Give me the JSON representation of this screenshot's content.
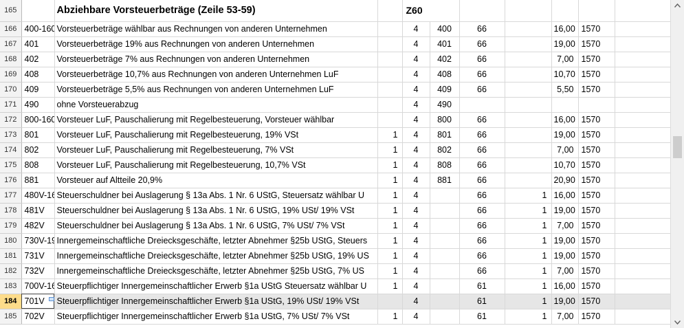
{
  "sheet": {
    "header_row": {
      "row": "165",
      "title": "Abziehbare Vorsteuerbeträge (Zeile 53-59)",
      "code": "Z60"
    },
    "rows": [
      {
        "row": "166",
        "account": "400-160",
        "desc": "Vorsteuerbeträge wählbar aus Rechnungen von anderen Unternehmen",
        "a": "",
        "b": "4",
        "c": "400",
        "d": "66",
        "e": "",
        "rate": "16,00",
        "f": "1570"
      },
      {
        "row": "167",
        "account": "401",
        "desc": "Vorsteuerbeträge 19% aus Rechnungen von anderen Unternehmen",
        "a": "",
        "b": "4",
        "c": "401",
        "d": "66",
        "e": "",
        "rate": "19,00",
        "f": "1570"
      },
      {
        "row": "168",
        "account": "402",
        "desc": "Vorsteuerbeträge 7% aus Rechnungen von anderen Unternehmen",
        "a": "",
        "b": "4",
        "c": "402",
        "d": "66",
        "e": "",
        "rate": "7,00",
        "f": "1570"
      },
      {
        "row": "169",
        "account": "408",
        "desc": "Vorsteuerbeträge 10,7% aus Rechnungen von anderen Unternehmen LuF",
        "a": "",
        "b": "4",
        "c": "408",
        "d": "66",
        "e": "",
        "rate": "10,70",
        "f": "1570"
      },
      {
        "row": "170",
        "account": "409",
        "desc": "Vorsteuerbeträge 5,5% aus Rechnungen von anderen Unternehmen LuF",
        "a": "",
        "b": "4",
        "c": "409",
        "d": "66",
        "e": "",
        "rate": "5,50",
        "f": "1570"
      },
      {
        "row": "171",
        "account": "490",
        "desc": "ohne Vorsteuerabzug",
        "a": "",
        "b": "4",
        "c": "490",
        "d": "",
        "e": "",
        "rate": "",
        "f": ""
      },
      {
        "row": "172",
        "account": "800-160",
        "desc": "Vorsteuer LuF, Pauschalierung mit Regelbesteuerung, Vorsteuer wählbar",
        "a": "",
        "b": "4",
        "c": "800",
        "d": "66",
        "e": "",
        "rate": "16,00",
        "f": "1570"
      },
      {
        "row": "173",
        "account": "801",
        "desc": "Vorsteuer LuF, Pauschalierung mit Regelbesteuerung, 19% VSt",
        "a": "1",
        "b": "4",
        "c": "801",
        "d": "66",
        "e": "",
        "rate": "19,00",
        "f": "1570"
      },
      {
        "row": "174",
        "account": "802",
        "desc": "Vorsteuer LuF, Pauschalierung mit Regelbesteuerung, 7% VSt",
        "a": "1",
        "b": "4",
        "c": "802",
        "d": "66",
        "e": "",
        "rate": "7,00",
        "f": "1570"
      },
      {
        "row": "175",
        "account": "808",
        "desc": "Vorsteuer LuF, Pauschalierung mit Regelbesteuerung, 10,7% VSt",
        "a": "1",
        "b": "4",
        "c": "808",
        "d": "66",
        "e": "",
        "rate": "10,70",
        "f": "1570"
      },
      {
        "row": "176",
        "account": "881",
        "desc": "Vorsteuer auf Altteile 20,9%",
        "a": "1",
        "b": "4",
        "c": "881",
        "d": "66",
        "e": "",
        "rate": "20,90",
        "f": "1570"
      },
      {
        "row": "177",
        "account": "480V-16",
        "desc": "Steuerschuldner bei Auslagerung § 13a Abs. 1 Nr. 6 UStG, Steuersatz wählbar U",
        "a": "1",
        "b": "4",
        "c": "",
        "d": "66",
        "e": "1",
        "rate": "16,00",
        "f": "1570"
      },
      {
        "row": "178",
        "account": "481V",
        "desc": "Steuerschuldner bei Auslagerung § 13a Abs. 1 Nr. 6 UStG, 19% USt/ 19% VSt",
        "a": "1",
        "b": "4",
        "c": "",
        "d": "66",
        "e": "1",
        "rate": "19,00",
        "f": "1570"
      },
      {
        "row": "179",
        "account": "482V",
        "desc": "Steuerschuldner bei Auslagerung § 13a Abs. 1 Nr. 6 UStG, 7% USt/ 7% VSt",
        "a": "1",
        "b": "4",
        "c": "",
        "d": "66",
        "e": "1",
        "rate": "7,00",
        "f": "1570"
      },
      {
        "row": "180",
        "account": "730V-19",
        "desc": "Innergemeinschaftliche Dreiecksgeschäfte, letzter Abnehmer §25b UStG, Steuers",
        "a": "1",
        "b": "4",
        "c": "",
        "d": "66",
        "e": "1",
        "rate": "19,00",
        "f": "1570"
      },
      {
        "row": "181",
        "account": "731V",
        "desc": "Innergemeinschaftliche Dreiecksgeschäfte, letzter Abnehmer §25b UStG, 19% US",
        "a": "1",
        "b": "4",
        "c": "",
        "d": "66",
        "e": "1",
        "rate": "19,00",
        "f": "1570"
      },
      {
        "row": "182",
        "account": "732V",
        "desc": "Innergemeinschaftliche Dreiecksgeschäfte, letzter Abnehmer §25b UStG, 7% US",
        "a": "1",
        "b": "4",
        "c": "",
        "d": "66",
        "e": "1",
        "rate": "7,00",
        "f": "1570"
      },
      {
        "row": "183",
        "account": "700V-16",
        "desc": "Steuerpflichtiger Innergemeinschaftlicher Erwerb §1a UStG Steuersatz wählbar U",
        "a": "1",
        "b": "4",
        "c": "",
        "d": "61",
        "e": "1",
        "rate": "16,00",
        "f": "1570"
      },
      {
        "row": "184",
        "account": "701V",
        "desc": "Steuerpflichtiger Innergemeinschaftlicher Erwerb §1a UStG, 19% USt/ 19% VSt",
        "a": "",
        "b": "4",
        "c": "",
        "d": "61",
        "e": "1",
        "rate": "19,00",
        "f": "1570",
        "selected": true
      },
      {
        "row": "185",
        "account": "702V",
        "desc": "Steuerpflichtiger Innergemeinschaftlicher Erwerb §1a UStG, 7% USt/ 7% VSt",
        "a": "1",
        "b": "4",
        "c": "",
        "d": "61",
        "e": "1",
        "rate": "7,00",
        "f": "1570"
      }
    ]
  },
  "scrollbar": {
    "up_icon": "chevron-up-icon",
    "down_icon": "chevron-down-icon",
    "position": 0.43
  },
  "colors": {
    "selected_row_header": "#fddc8a",
    "selected_row": "#e6e6e6",
    "grid": "#d8d8d8"
  }
}
